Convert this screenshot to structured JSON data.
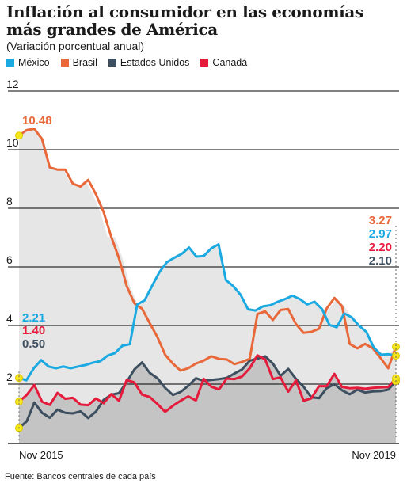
{
  "title": "Inflación al consumidor en las economías más grandes de América",
  "subtitle": "(Variación porcentual anual)",
  "source": "Fuente: Bancos centrales de cada país",
  "colors": {
    "mexico": "#1ba9e1",
    "brasil": "#e8683a",
    "eeuu": "#3d4f5f",
    "canada": "#e51b3c",
    "marker": "#f5e61e",
    "grid": "#000000",
    "area_light": "#e6e6e6",
    "area_dark": "#c4c4c4"
  },
  "chart_data": {
    "type": "line",
    "x_start_label": "Nov 2015",
    "x_end_label": "Nov 2019",
    "ylim": [
      0,
      12
    ],
    "yticks": [
      2,
      4,
      6,
      8,
      10,
      12
    ],
    "xlabels": [
      "Nov 2015",
      "Nov 2019"
    ],
    "series": [
      {
        "name": "México",
        "color_key": "mexico",
        "values": [
          2.21,
          2.13,
          2.54,
          2.82,
          2.6,
          2.54,
          2.6,
          2.54,
          2.6,
          2.65,
          2.73,
          2.78,
          2.97,
          3.06,
          3.31,
          3.36,
          4.72,
          4.86,
          5.35,
          5.82,
          6.16,
          6.31,
          6.44,
          6.66,
          6.35,
          6.37,
          6.63,
          6.77,
          5.55,
          5.34,
          5.04,
          4.55,
          4.51,
          4.65,
          4.69,
          4.81,
          4.9,
          5.02,
          4.9,
          4.72,
          4.81,
          4.56,
          4.02,
          3.94,
          4.41,
          4.28,
          4.0,
          3.78,
          3.25,
          3.0,
          3.02,
          2.97
        ],
        "start_label": "2.21",
        "end_label": "2.97"
      },
      {
        "name": "Brasil",
        "color_key": "brasil",
        "values": [
          10.48,
          10.67,
          10.71,
          10.36,
          9.39,
          9.32,
          9.32,
          8.84,
          8.74,
          8.97,
          8.48,
          7.87,
          7.02,
          6.29,
          5.35,
          4.76,
          4.57,
          4.08,
          3.6,
          3.0,
          2.7,
          2.46,
          2.54,
          2.7,
          2.8,
          2.95,
          2.86,
          2.84,
          2.68,
          2.76,
          2.86,
          4.39,
          4.48,
          4.19,
          4.53,
          4.56,
          4.05,
          3.75,
          3.78,
          3.89,
          4.58,
          4.94,
          4.66,
          3.37,
          3.22,
          3.37,
          3.22,
          2.89,
          2.54,
          3.27
        ],
        "start_label": "10.48",
        "end_label": "3.27"
      },
      {
        "name": "Estados Unidos",
        "color_key": "eeuu",
        "values": [
          0.5,
          0.73,
          1.37,
          1.02,
          0.85,
          1.13,
          1.02,
          1.0,
          1.07,
          0.84,
          1.06,
          1.46,
          1.64,
          1.69,
          2.07,
          2.5,
          2.74,
          2.38,
          2.2,
          1.87,
          1.63,
          1.73,
          1.94,
          2.2,
          2.11,
          2.14,
          2.17,
          2.21,
          2.36,
          2.5,
          2.8,
          2.87,
          2.95,
          2.7,
          2.28,
          2.52,
          2.18,
          1.91,
          1.55,
          1.52,
          1.86,
          2.0,
          1.79,
          1.65,
          1.81,
          1.71,
          1.75,
          1.76,
          1.81,
          2.1
        ]
      },
      {
        "name": "Canadá",
        "color_key": "canada",
        "values": [
          1.4,
          1.63,
          1.97,
          1.4,
          1.29,
          1.7,
          1.5,
          1.53,
          1.3,
          1.28,
          1.51,
          1.35,
          1.66,
          1.43,
          2.14,
          2.06,
          1.64,
          1.56,
          1.32,
          1.05,
          1.26,
          1.43,
          1.58,
          1.44,
          2.18,
          1.91,
          1.82,
          2.19,
          2.17,
          2.26,
          2.54,
          2.98,
          2.84,
          2.17,
          2.23,
          1.74,
          2.13,
          1.43,
          1.51,
          1.93,
          1.93,
          2.35,
          1.9,
          1.86,
          1.87,
          1.84,
          1.87,
          1.89,
          1.9,
          2.2
        ],
        "start_label": "1.40",
        "end_label": "2.20"
      }
    ],
    "start_labels_extra": [
      {
        "text": "0.50",
        "color_key": "eeuu"
      }
    ],
    "end_labels_extra": [
      {
        "text": "2.10",
        "color_key": "eeuu"
      }
    ]
  }
}
